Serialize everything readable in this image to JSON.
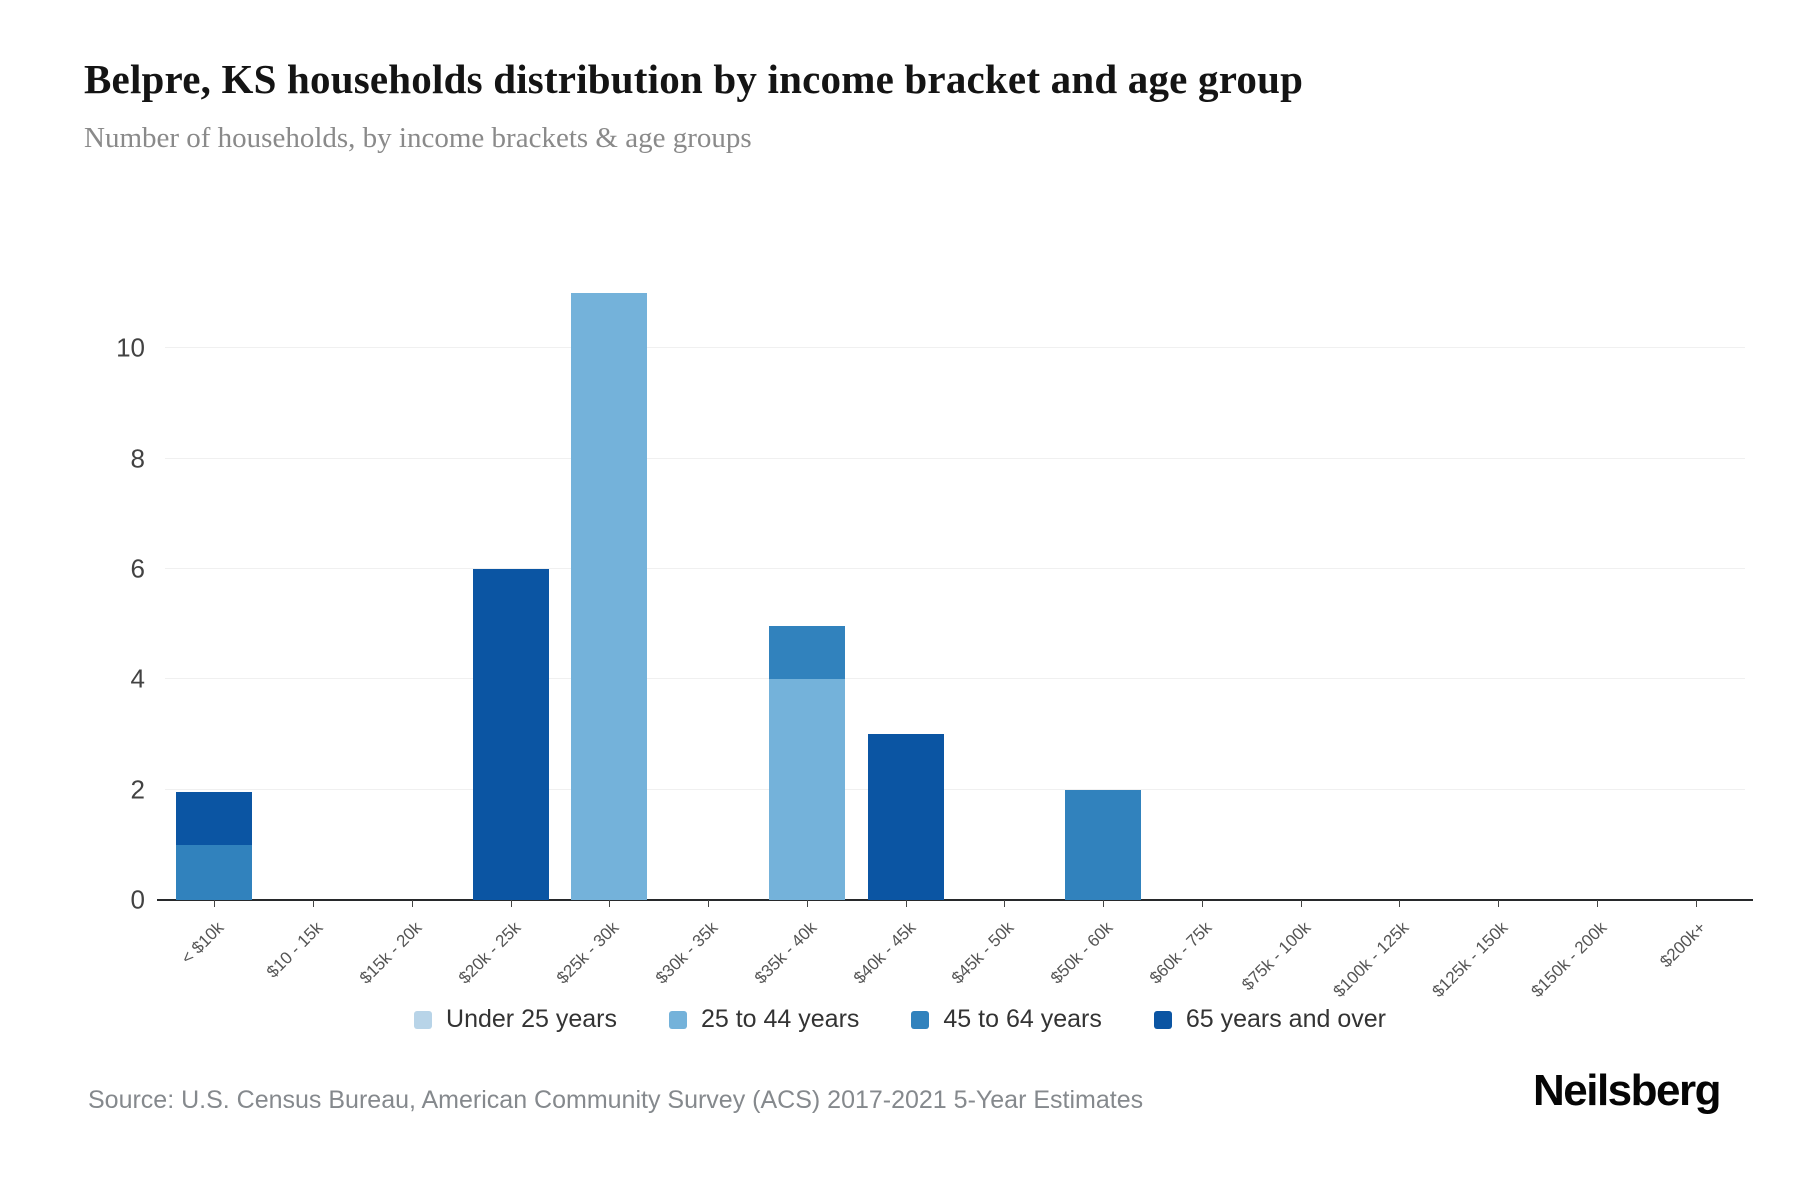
{
  "header": {
    "title": "Belpre, KS households distribution by income bracket and age group",
    "subtitle": "Number of households, by income brackets & age groups"
  },
  "footer": {
    "source_text": "Source: U.S. Census Bureau, American Community Survey (ACS) 2017-2021 5-Year Estimates",
    "brand_text": "Neilsberg"
  },
  "colors": {
    "under_25": "#b8d4e8",
    "age_25_44": "#74b2da",
    "age_45_64": "#3182bd",
    "age_65_over": "#0b55a3",
    "gridline": "#f0f0f0",
    "axis_line": "#27292b"
  },
  "chart_data": {
    "type": "bar",
    "stacked": true,
    "title": "Belpre, KS households distribution by income bracket and age group",
    "xlabel": "",
    "ylabel": "Number of households",
    "grid": true,
    "legend_position": "bottom",
    "ylim": [
      0,
      11.6
    ],
    "yticks": [
      0,
      2,
      4,
      6,
      8,
      10
    ],
    "categories": [
      "< $10k",
      "$10 - 15k",
      "$15k - 20k",
      "$20k - 25k",
      "$25k - 30k",
      "$30k - 35k",
      "$35k - 40k",
      "$40k - 45k",
      "$45k - 50k",
      "$50k - 60k",
      "$60k - 75k",
      "$75k - 100k",
      "$100k - 125k",
      "$125k - 150k",
      "$150k - 200k",
      "$200k+"
    ],
    "series": [
      {
        "name": "Under 25 years",
        "color": "#b8d4e8",
        "values": [
          0,
          0,
          0,
          0,
          0,
          0,
          0,
          0,
          0,
          0,
          0,
          0,
          0,
          0,
          0,
          0
        ]
      },
      {
        "name": "25 to 44 years",
        "color": "#74b2da",
        "values": [
          0,
          0,
          0,
          0,
          11,
          0,
          4,
          0,
          0,
          0,
          0,
          0,
          0,
          0,
          0,
          0
        ]
      },
      {
        "name": "45 to 64 years",
        "color": "#3182bd",
        "values": [
          1,
          0,
          0,
          0,
          0,
          0,
          1,
          0,
          0,
          2,
          0,
          0,
          0,
          0,
          0,
          0
        ]
      },
      {
        "name": "65 years and over",
        "color": "#0b55a3",
        "values": [
          1,
          0,
          0,
          6,
          0,
          0,
          0,
          3,
          0,
          0,
          0,
          0,
          0,
          0,
          0,
          0
        ]
      }
    ]
  }
}
